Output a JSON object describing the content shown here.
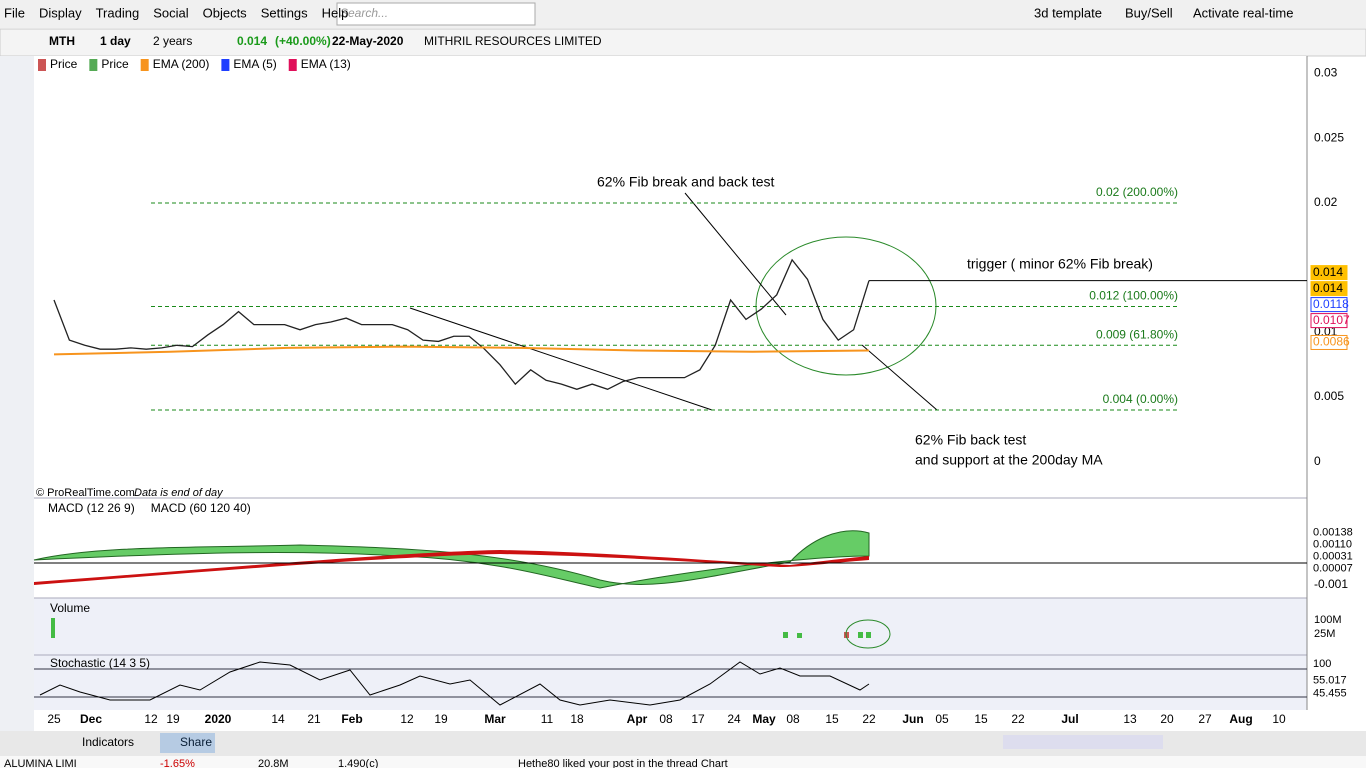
{
  "menu": {
    "items": [
      "File",
      "Display",
      "Trading",
      "Social",
      "Objects",
      "Settings",
      "Help"
    ],
    "search": "Search...",
    "right": [
      "3d template",
      "Buy/Sell",
      "Activate real-time"
    ]
  },
  "toolbar": {
    "symbol": "MTH",
    "interval": "1 day",
    "period": "2 years",
    "last": "0.014",
    "change": "(+40.00%)",
    "date": "22-May-2020",
    "name": "MITHRIL RESOURCES LIMITED"
  },
  "chart_data": {
    "type": "line",
    "legend": [
      "Price",
      "Price",
      "EMA (200)",
      "EMA (5)",
      "EMA (13)"
    ],
    "ylim": [
      -0.0028,
      0.0312
    ],
    "yticks": [
      0,
      0.005,
      0.01,
      0.02,
      0.025,
      0.03
    ],
    "series": [
      {
        "name": "Price",
        "color": "#222222",
        "values": [
          0.0125,
          0.0094,
          0.009,
          0.0087,
          0.0087,
          0.0088,
          0.0087,
          0.0088,
          0.009,
          0.0089,
          0.0098,
          0.0106,
          0.0116,
          0.0106,
          0.0106,
          0.0106,
          0.0102,
          0.0106,
          0.0108,
          0.0111,
          0.0106,
          0.0106,
          0.0106,
          0.0102,
          0.0094,
          0.0093,
          0.0097,
          0.0097,
          0.0087,
          0.0075,
          0.006,
          0.0071,
          0.0063,
          0.006,
          0.0056,
          0.006,
          0.0056,
          0.0062,
          0.0065,
          0.0065,
          0.0065,
          0.0065,
          0.0071,
          0.009,
          0.0125,
          0.011,
          0.0118,
          0.0129,
          0.0156,
          0.0141,
          0.011,
          0.0094,
          0.0102,
          0.014
        ]
      },
      {
        "name": "EMA (200)",
        "color": "#f7941d",
        "values": [
          0.0083,
          0.0085,
          0.0088,
          0.0089,
          0.0088,
          0.0086,
          0.0085,
          0.0086
        ]
      }
    ],
    "price_labels": [
      {
        "value": 0.014,
        "color": "#ffc000"
      },
      {
        "value": 0.014,
        "color": "#ffc000"
      },
      {
        "value": 0.0118,
        "color": "#1f3fff"
      },
      {
        "value": 0.0107,
        "color": "#e0105a"
      },
      {
        "value": 0.0086,
        "color": "#f7941d"
      }
    ],
    "fib_levels": [
      {
        "value": 0.02,
        "label": "0.02 (200.00%)"
      },
      {
        "value": 0.012,
        "label": "0.012 (100.00%)"
      },
      {
        "value": 0.009,
        "label": "0.009 (61.80%)"
      },
      {
        "value": 0.004,
        "label": "0.004 (0.00%)"
      }
    ],
    "annotations": [
      "62% Fib break and back test",
      "trigger ( minor 62% Fib break)",
      "62% Fib back test",
      "and support at the 200day MA"
    ],
    "credit": "© ProRealTime.com",
    "credit_note": "Data is end of day",
    "x_labels": [
      "25",
      "Dec",
      "12",
      "19",
      "2020",
      "14",
      "21",
      "Feb",
      "12",
      "19",
      "Mar",
      "11",
      "18",
      "Apr",
      "08",
      "17",
      "24",
      "May",
      "08",
      "15",
      "22",
      "Jun",
      "05",
      "15",
      "22",
      "Jul",
      "13",
      "20",
      "27",
      "Aug",
      "10"
    ]
  },
  "macd": {
    "legend": [
      "MACD (12 26 9)",
      "MACD (60 120 40)"
    ],
    "ylim": [
      -0.00159,
      0.00286
    ],
    "yticks": [
      -0.001
    ],
    "labels": [
      {
        "value": 0.00138,
        "label": "0.00138"
      },
      {
        "value": 0.0011,
        "label": "0.00110"
      },
      {
        "value": 0.00031,
        "label": "0.00031"
      },
      {
        "value": 7e-05,
        "label": "0.00007"
      }
    ]
  },
  "volume": {
    "legend": "Volume",
    "ylim": [
      -87000000,
      207000000
    ],
    "labels": [
      {
        "value": 100000000,
        "label": "100M"
      },
      {
        "value": 25000000,
        "label": "25M"
      }
    ]
  },
  "stochastic": {
    "legend": "Stochastic (14 3 5)",
    "ylim": [
      -20,
      120
    ],
    "labels": [
      100,
      55.017,
      45.455
    ]
  },
  "bottom_toolbar": {
    "indicators": "Indicators",
    "share": "Share"
  },
  "status": [
    "ALUMINA LIMI",
    "-1.65%",
    "20.8M",
    "1.490(c)",
    "Hethe80 liked your post in the thread Chart"
  ]
}
